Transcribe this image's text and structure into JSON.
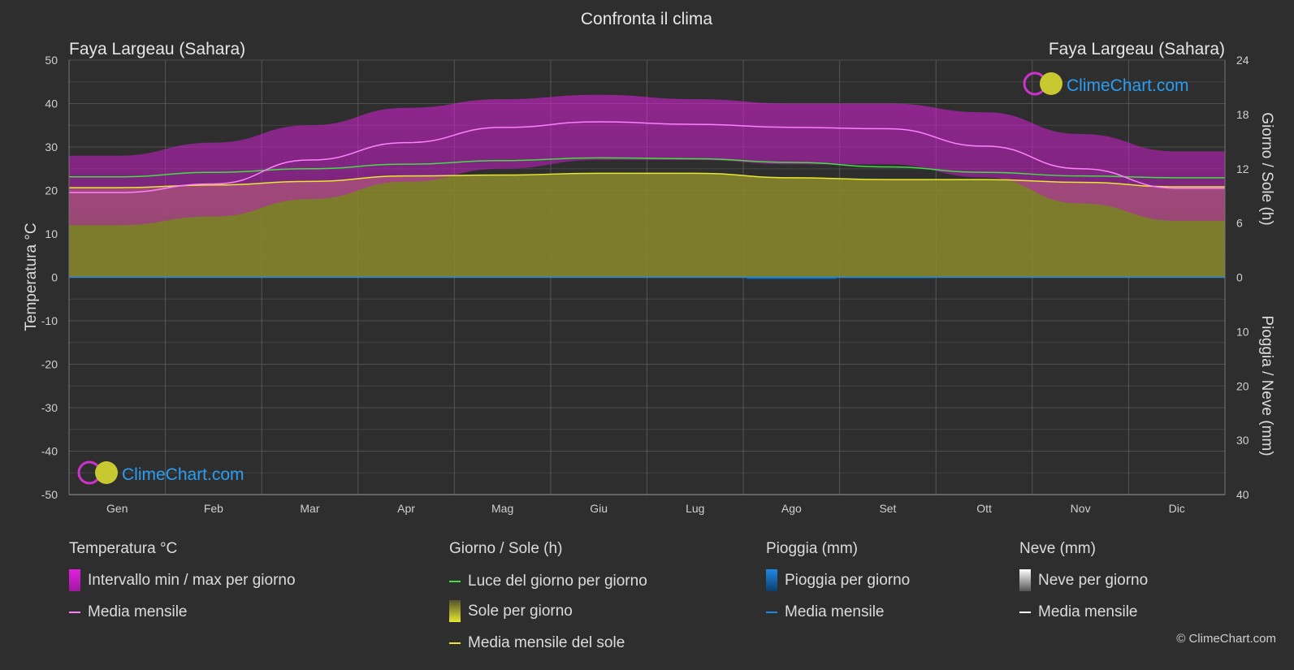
{
  "title": "Confronta il clima",
  "location_left": "Faya Largeau (Sahara)",
  "location_right": "Faya Largeau (Sahara)",
  "brand": "ClimeChart.com",
  "copyright": "© ClimeChart.com",
  "colors": {
    "background": "#2e2e2e",
    "temp_range": "#e020e0",
    "temp_mean": "#ff80ff",
    "daylight": "#44dd44",
    "sunshine": "#9a9a30",
    "sunshine_mean": "#e8e830",
    "rain": "#1e88e5",
    "snow": "#ffffff",
    "brand": "#2a9df4"
  },
  "chart_data": {
    "type": "area",
    "months": [
      "Gen",
      "Feb",
      "Mar",
      "Apr",
      "Mag",
      "Giu",
      "Lug",
      "Ago",
      "Set",
      "Ott",
      "Nov",
      "Dic"
    ],
    "axis_left": {
      "label": "Temperatura °C",
      "min": -50,
      "max": 50,
      "ticks": [
        50,
        40,
        30,
        20,
        10,
        0,
        -10,
        -20,
        -30,
        -40,
        -50
      ]
    },
    "axis_right_top": {
      "label": "Giorno / Sole (h)",
      "min": 0,
      "max": 24,
      "ticks": [
        24,
        18,
        12,
        6,
        0
      ]
    },
    "axis_right_bottom": {
      "label": "Pioggia / Neve (mm)",
      "min": 0,
      "max": 40,
      "ticks": [
        10,
        20,
        30,
        40
      ]
    },
    "temp_max": [
      28,
      31,
      35,
      39,
      41,
      42,
      41,
      40,
      40,
      38,
      33,
      29
    ],
    "temp_min": [
      12,
      14,
      18,
      22,
      25,
      27,
      27,
      26,
      26,
      23,
      17,
      13
    ],
    "temp_mean": [
      19.5,
      21.5,
      27.0,
      31.0,
      34.5,
      35.8,
      35.2,
      34.5,
      34.2,
      30.2,
      25.0,
      20.5
    ],
    "daylight_hours": [
      11.1,
      11.6,
      12.0,
      12.5,
      12.9,
      13.2,
      13.1,
      12.7,
      12.2,
      11.6,
      11.2,
      11.0
    ],
    "sunshine_hours": [
      9.9,
      10.2,
      10.6,
      11.2,
      11.3,
      11.5,
      11.5,
      11.0,
      10.8,
      10.8,
      10.5,
      10.0
    ],
    "rain_mean_mm": [
      0,
      0,
      0,
      0,
      0,
      0,
      0.1,
      0.4,
      0.2,
      0,
      0,
      0
    ],
    "snow_mean_mm": [
      0,
      0,
      0,
      0,
      0,
      0,
      0,
      0,
      0,
      0,
      0,
      0
    ],
    "grid": true
  },
  "legend": {
    "temperature": {
      "header": "Temperatura °C",
      "range": "Intervallo min / max per giorno",
      "mean": "Media mensile"
    },
    "sun": {
      "header": "Giorno / Sole (h)",
      "daylight": "Luce del giorno per giorno",
      "sunshine": "Sole per giorno",
      "sunshine_mean": "Media mensile del sole"
    },
    "rain": {
      "header": "Pioggia (mm)",
      "daily": "Pioggia per giorno",
      "mean": "Media mensile"
    },
    "snow": {
      "header": "Neve (mm)",
      "daily": "Neve per giorno",
      "mean": "Media mensile"
    }
  }
}
